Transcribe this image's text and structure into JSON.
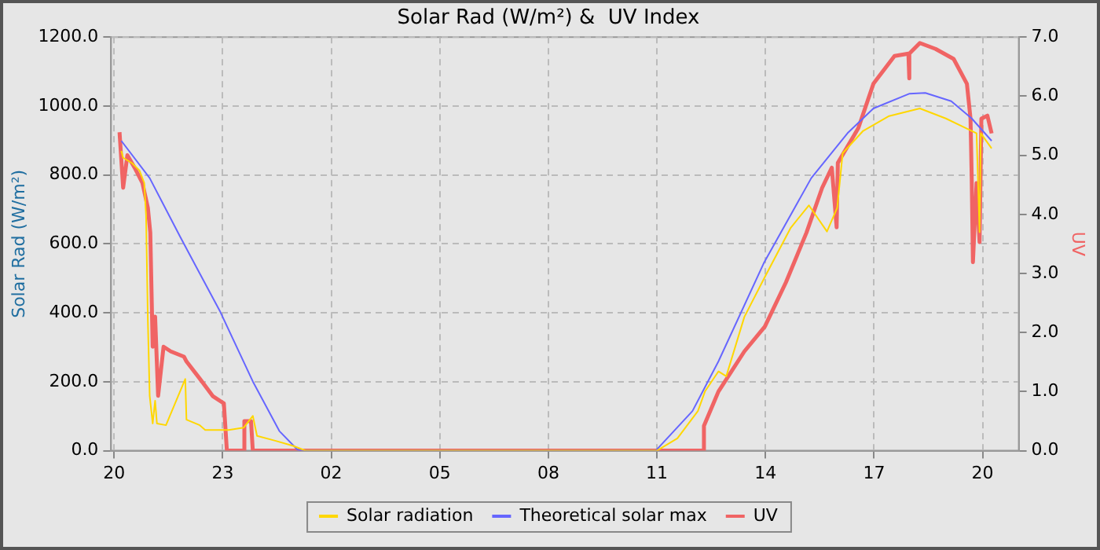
{
  "chart_data": {
    "type": "line",
    "title": "Solar Rad (W/m²) &  UV Index",
    "ylabel": "Solar Rad (W/m²)",
    "y2label": "UV",
    "xlim": [
      "--06-01T19:55",
      "--06-02T21:00"
    ],
    "xticks": [
      {
        "value": "--06-01T20:00",
        "label": "20"
      },
      {
        "value": "--06-01T23:00",
        "label": "23"
      },
      {
        "value": "--06-02T02:00",
        "label": "02"
      },
      {
        "value": "--06-02T05:00",
        "label": "05"
      },
      {
        "value": "--06-02T08:00",
        "label": "08"
      },
      {
        "value": "--06-02T11:00",
        "label": "11"
      },
      {
        "value": "--06-02T14:00",
        "label": "14"
      },
      {
        "value": "--06-02T17:00",
        "label": "17"
      },
      {
        "value": "--06-02T20:00",
        "label": "20"
      }
    ],
    "ylim": [
      0,
      1200
    ],
    "yticks": [
      {
        "value": 0,
        "label": "0.0"
      },
      {
        "value": 200,
        "label": "200.0"
      },
      {
        "value": 400,
        "label": "400.0"
      },
      {
        "value": 600,
        "label": "600.0"
      },
      {
        "value": 800,
        "label": "800.0"
      },
      {
        "value": 1000,
        "label": "1000.0"
      },
      {
        "value": 1200,
        "label": "1200.0"
      }
    ],
    "y2lim": [
      0,
      7
    ],
    "y2ticks": [
      {
        "value": 0,
        "label": "0.0"
      },
      {
        "value": 1,
        "label": "1.0"
      },
      {
        "value": 2,
        "label": "2.0"
      },
      {
        "value": 3,
        "label": "3.0"
      },
      {
        "value": 4,
        "label": "4.0"
      },
      {
        "value": 5,
        "label": "5.0"
      },
      {
        "value": 6,
        "label": "6.0"
      },
      {
        "value": 7,
        "label": "7.0"
      }
    ],
    "grid": true,
    "legend": "bottom",
    "marker": "none",
    "line_style": "solid",
    "series": [
      {
        "name": "Solar radiation",
        "color": "#ffd700",
        "x": [
          "--06-01T20:12",
          "--06-01T20:15",
          "--06-01T20:30",
          "--06-01T20:42",
          "--06-01T20:50",
          "--06-01T20:53",
          "--06-01T20:56",
          "--06-01T20:59",
          "--06-01T21:04",
          "--06-01T21:08",
          "--06-01T21:11",
          "--06-01T21:26",
          "--06-01T21:58",
          "--06-01T22:00",
          "--06-01T22:22",
          "--06-01T22:31",
          "--06-01T23:10",
          "--06-01T23:35",
          "--06-01T23:50",
          "--06-01T23:57",
          "--06-02T00:27",
          "--06-02T00:57",
          "--06-02T01:18",
          "--06-02T11:00",
          "--06-02T11:34",
          "--06-02T12:08",
          "--06-02T12:20",
          "--06-02T12:42",
          "--06-02T12:55",
          "--06-02T13:25",
          "--06-02T13:59",
          "--06-02T14:42",
          "--06-02T15:12",
          "--06-02T15:42",
          "--06-02T15:59",
          "--06-02T16:08",
          "--06-02T16:42",
          "--06-02T17:25",
          "--06-02T18:16",
          "--06-02T18:59",
          "--06-02T19:25",
          "--06-02T19:50",
          "--06-02T19:55",
          "--06-02T19:57",
          "--06-02T20:15"
        ],
        "values": [
          870,
          850,
          834,
          813,
          777,
          683,
          375,
          159,
          79,
          145,
          79,
          74,
          208,
          90,
          74,
          60,
          60,
          67,
          101,
          43,
          29,
          14,
          0,
          0,
          36,
          115,
          173,
          230,
          216,
          388,
          504,
          647,
          712,
          636,
          705,
          863,
          928,
          971,
          993,
          964,
          942,
          921,
          634,
          921,
          877
        ]
      },
      {
        "name": "Theoretical solar max",
        "color": "#6666ff",
        "x": [
          "--06-01T20:12",
          "--06-01T20:59",
          "--06-01T21:50",
          "--06-01T22:56",
          "--06-01T23:50",
          "--06-02T00:34",
          "--06-02T01:04",
          "--06-02T01:12",
          "--06-02T10:58",
          "--06-02T11:59",
          "--06-02T12:42",
          "--06-02T13:58",
          "--06-02T15:16",
          "--06-02T16:16",
          "--06-02T16:59",
          "--06-02T17:59",
          "--06-02T18:25",
          "--06-02T19:08",
          "--06-02T19:42",
          "--06-02T20:15"
        ],
        "values": [
          899,
          791,
          619,
          403,
          201,
          57,
          3,
          0,
          0,
          115,
          259,
          547,
          791,
          921,
          993,
          1036,
          1038,
          1014,
          964,
          899
        ]
      },
      {
        "name": "UV",
        "color": "#f06464",
        "axis": "y2",
        "x": [
          "--06-01T20:09",
          "--06-01T20:15",
          "--06-01T20:22",
          "--06-01T20:34",
          "--06-01T20:47",
          "--06-01T20:56",
          "--06-01T21:00",
          "--06-01T21:04",
          "--06-01T21:08",
          "--06-01T21:13",
          "--06-01T21:22",
          "--06-01T21:34",
          "--06-01T21:56",
          "--06-01T22:00",
          "--06-01T22:22",
          "--06-01T22:44",
          "--06-01T23:02",
          "--06-01T23:07",
          "--06-01T23:35",
          "--06-01T23:36",
          "--06-01T23:47",
          "--06-01T23:50",
          "--06-02T12:16",
          "--06-02T12:18",
          "--06-02T12:42",
          "--06-02T13:25",
          "--06-02T13:59",
          "--06-02T14:34",
          "--06-02T15:08",
          "--06-02T15:34",
          "--06-02T15:50",
          "--06-02T15:58",
          "--06-02T16:00",
          "--06-02T16:34",
          "--06-02T16:59",
          "--06-02T17:34",
          "--06-02T17:57",
          "--06-02T17:58",
          "--06-02T17:59",
          "--06-02T18:16",
          "--06-02T18:42",
          "--06-02T19:12",
          "--06-02T19:34",
          "--06-02T19:40",
          "--06-02T19:42",
          "--06-02T19:44",
          "--06-02T19:50",
          "--06-02T19:55",
          "--06-02T19:58",
          "--06-02T20:08",
          "--06-02T20:15"
        ],
        "values": [
          5.39,
          4.45,
          5.0,
          4.79,
          4.53,
          4.11,
          3.69,
          1.76,
          2.27,
          0.93,
          1.76,
          1.68,
          1.59,
          1.51,
          1.22,
          0.92,
          0.8,
          0,
          0,
          0.5,
          0.5,
          0,
          0,
          0.42,
          1.0,
          1.68,
          2.1,
          2.85,
          3.69,
          4.45,
          4.79,
          3.78,
          4.87,
          5.46,
          6.21,
          6.68,
          6.72,
          6.3,
          6.72,
          6.9,
          6.8,
          6.63,
          6.21,
          5.62,
          4.6,
          3.19,
          4.53,
          3.53,
          5.62,
          5.67,
          5.37
        ]
      }
    ]
  }
}
